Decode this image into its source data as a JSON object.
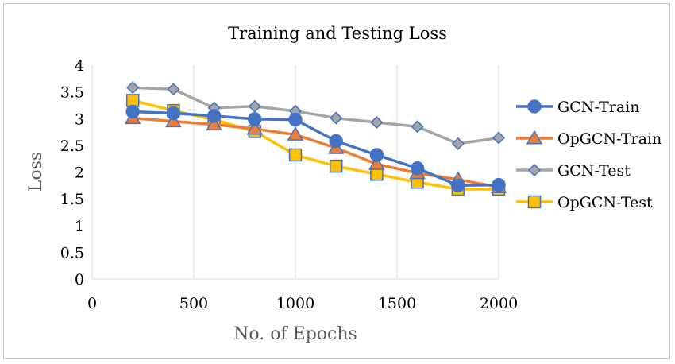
{
  "chart_data": {
    "type": "line",
    "title": "Training and Testing Loss",
    "xlabel": "No. of Epochs",
    "ylabel": "Loss",
    "xlim": [
      0,
      2000
    ],
    "ylim": [
      0,
      4
    ],
    "x_ticks": [
      0,
      500,
      1000,
      1500,
      2000
    ],
    "y_ticks": [
      0,
      0.5,
      1,
      1.5,
      2,
      2.5,
      3,
      3.5,
      4
    ],
    "x_tick_labels": [
      "0",
      "500",
      "1000",
      "1500",
      "2000"
    ],
    "y_tick_labels": [
      "0",
      "0.5",
      "1",
      "1.5",
      "2",
      "2.5",
      "3",
      "3.5",
      "4"
    ],
    "grid": "vertical",
    "legend_position": "right",
    "series": [
      {
        "name": "GCN-Train",
        "color": "#4472C4",
        "marker": "circle",
        "x": [
          200,
          400,
          600,
          800,
          1000,
          1200,
          1400,
          1600,
          1800,
          2000
        ],
        "y": [
          3.13,
          3.1,
          3.05,
          2.99,
          2.98,
          2.58,
          2.32,
          2.07,
          1.75,
          1.76
        ]
      },
      {
        "name": "OpGCN-Train",
        "color": "#ED7D31",
        "marker": "triangle",
        "x": [
          200,
          400,
          600,
          800,
          1000,
          1200,
          1400,
          1600,
          1800,
          2000
        ],
        "y": [
          3.01,
          2.95,
          2.89,
          2.81,
          2.7,
          2.45,
          2.15,
          1.98,
          1.86,
          1.72
        ]
      },
      {
        "name": "GCN-Test",
        "color": "#A5A5A5",
        "marker": "diamond",
        "x": [
          200,
          400,
          600,
          800,
          1000,
          1200,
          1400,
          1600,
          1800,
          2000
        ],
        "y": [
          3.58,
          3.55,
          3.2,
          3.23,
          3.14,
          3.01,
          2.93,
          2.85,
          2.53,
          2.64
        ]
      },
      {
        "name": "OpGCN-Test",
        "color": "#FFC000",
        "marker": "square",
        "x": [
          200,
          400,
          600,
          800,
          1000,
          1200,
          1400,
          1600,
          1800,
          2000
        ],
        "y": [
          3.34,
          3.15,
          2.98,
          2.76,
          2.32,
          2.11,
          1.96,
          1.81,
          1.68,
          1.68
        ]
      }
    ]
  }
}
